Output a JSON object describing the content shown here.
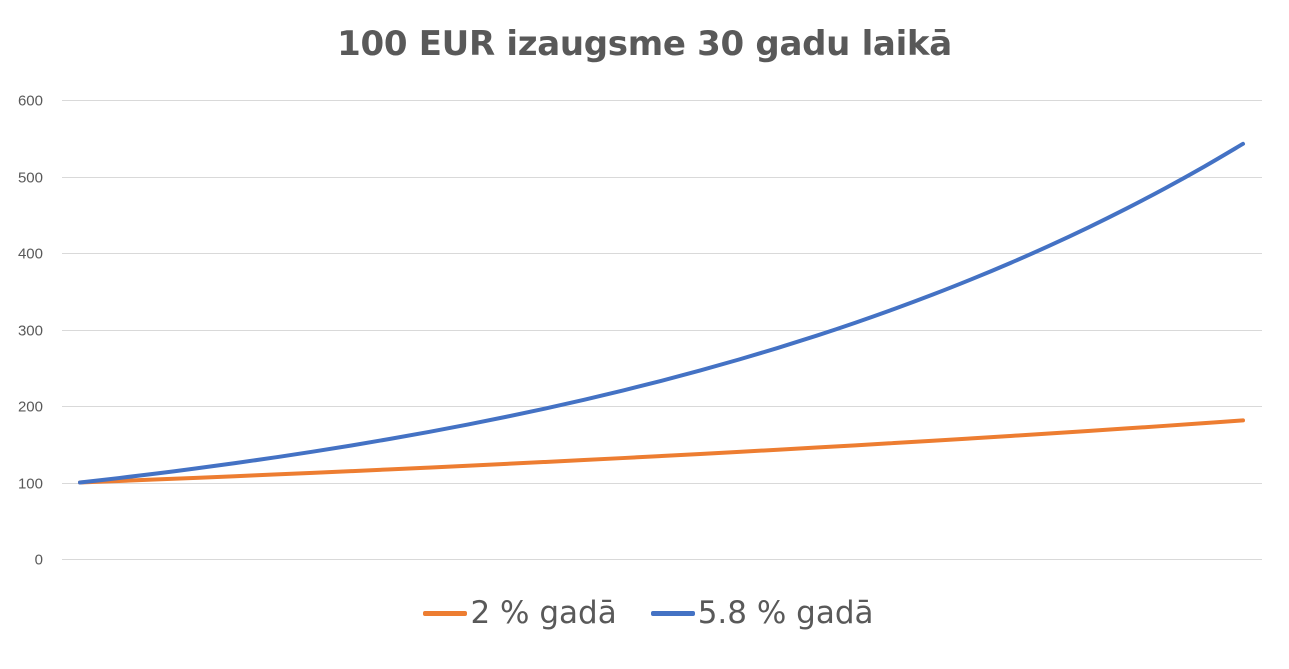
{
  "chart_data": {
    "type": "line",
    "title": "100 EUR izaugsme 30 gadu laikā",
    "xlabel": "",
    "ylabel": "",
    "ylim": [
      0,
      600
    ],
    "yticks": [
      0,
      100,
      200,
      300,
      400,
      500,
      600
    ],
    "grid": true,
    "legend_position": "bottom",
    "x": [
      0,
      1,
      2,
      3,
      4,
      5,
      6,
      7,
      8,
      9,
      10,
      11,
      12,
      13,
      14,
      15,
      16,
      17,
      18,
      19,
      20,
      21,
      22,
      23,
      24,
      25,
      26,
      27,
      28,
      29,
      30
    ],
    "series": [
      {
        "name": "2 % gadā",
        "color": "#ED7D31",
        "values": [
          100,
          102,
          104.04,
          106.12,
          108.24,
          110.41,
          112.62,
          114.87,
          117.17,
          119.51,
          121.9,
          124.34,
          126.82,
          129.36,
          131.95,
          134.59,
          137.28,
          140.02,
          142.82,
          145.68,
          148.59,
          151.57,
          154.6,
          157.69,
          160.84,
          164.06,
          167.34,
          170.69,
          174.1,
          177.58,
          181.14
        ]
      },
      {
        "name": "5.8 % gadā",
        "color": "#4472C4",
        "values": [
          100,
          105.8,
          111.94,
          118.43,
          125.3,
          132.57,
          140.26,
          148.39,
          156.99,
          166.1,
          175.73,
          185.93,
          196.71,
          208.12,
          220.19,
          232.96,
          246.47,
          260.77,
          275.89,
          291.89,
          308.82,
          326.74,
          345.69,
          365.74,
          386.95,
          409.39,
          433.14,
          458.26,
          484.84,
          512.96,
          542.71
        ]
      }
    ]
  }
}
